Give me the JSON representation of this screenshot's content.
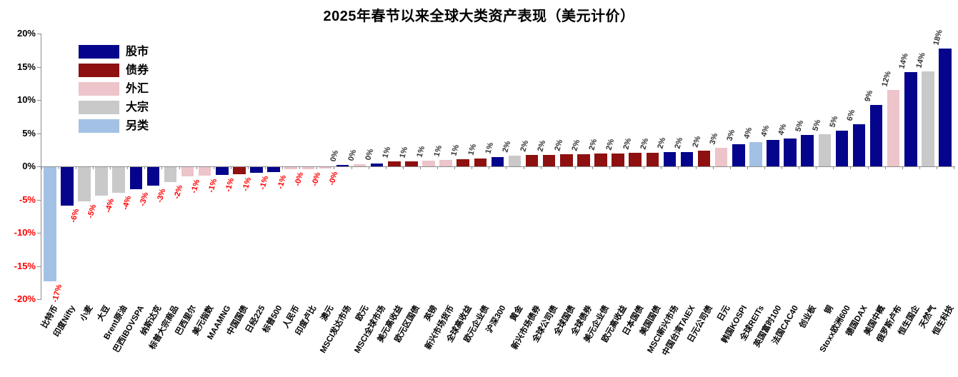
{
  "chart_data": {
    "type": "bar",
    "title": "2025年春节以来全球大类资产表现（美元计价）",
    "xlabel": "",
    "ylabel": "",
    "ylim": [
      -20,
      20
    ],
    "grid": false,
    "legend_position": "top-left",
    "positive_label_color": "#333333",
    "negative_label_color": "#FF0000",
    "axis_color": "#8c8c8c",
    "legend": [
      {
        "name": "股市",
        "color": "#04048C"
      },
      {
        "name": "债券",
        "color": "#8E1010"
      },
      {
        "name": "外汇",
        "color": "#ECC4C9"
      },
      {
        "name": "大宗",
        "color": "#C9C9C9"
      },
      {
        "name": "另类",
        "color": "#A3C1E5"
      }
    ],
    "y_ticks": [
      {
        "label": "20%",
        "v": 20,
        "color": "#000000"
      },
      {
        "label": "15%",
        "v": 15,
        "color": "#000000"
      },
      {
        "label": "10%",
        "v": 10,
        "color": "#000000"
      },
      {
        "label": "5%",
        "v": 5,
        "color": "#000000"
      },
      {
        "label": "0%",
        "v": 0,
        "color": "#000000"
      },
      {
        "label": "-5%",
        "v": -5,
        "color": "#FF0000"
      },
      {
        "label": "-10%",
        "v": -10,
        "color": "#FF0000"
      },
      {
        "label": "-15%",
        "v": -15,
        "color": "#FF0000"
      },
      {
        "label": "-20%",
        "v": -20,
        "color": "#FF0000"
      }
    ],
    "bars": [
      {
        "name": "比特币",
        "category": "另类",
        "label": "-17%",
        "value": -17.3
      },
      {
        "name": "印度Nifty",
        "category": "股市",
        "label": "-6%",
        "value": -5.9
      },
      {
        "name": "小麦",
        "category": "大宗",
        "label": "-5%",
        "value": -5.2
      },
      {
        "name": "大豆",
        "category": "大宗",
        "label": "-4%",
        "value": -4.4
      },
      {
        "name": "Brent原油",
        "category": "大宗",
        "label": "-4%",
        "value": -3.9
      },
      {
        "name": "巴西IBOVSPA",
        "category": "股市",
        "label": "-3%",
        "value": -3.4
      },
      {
        "name": "纳斯达克",
        "category": "股市",
        "label": "-3%",
        "value": -2.9
      },
      {
        "name": "标普大宗商品",
        "category": "大宗",
        "label": "-2%",
        "value": -2.3
      },
      {
        "name": "巴西里尔",
        "category": "外汇",
        "label": "-1%",
        "value": -1.4
      },
      {
        "name": "美元指数",
        "category": "外汇",
        "label": "-1%",
        "value": -1.3
      },
      {
        "name": "MAAMNG",
        "category": "股市",
        "label": "-1%",
        "value": -1.2
      },
      {
        "name": "中国国债",
        "category": "债券",
        "label": "-1%",
        "value": -1.1
      },
      {
        "name": "日经225",
        "category": "股市",
        "label": "-1%",
        "value": -0.9
      },
      {
        "name": "标普500",
        "category": "股市",
        "label": "-1%",
        "value": -0.8
      },
      {
        "name": "人民币",
        "category": "外汇",
        "label": "-0%",
        "value": -0.4
      },
      {
        "name": "印度卢比",
        "category": "外汇",
        "label": "-0%",
        "value": -0.35
      },
      {
        "name": "澳元",
        "category": "外汇",
        "label": "-0%",
        "value": -0.3
      },
      {
        "name": "MSCI发达市场",
        "category": "股市",
        "label": "0%",
        "value": 0.25
      },
      {
        "name": "欧元",
        "category": "外汇",
        "label": "0%",
        "value": 0.3
      },
      {
        "name": "MSCI全球市场",
        "category": "股市",
        "label": "0%",
        "value": 0.4
      },
      {
        "name": "美元高收益",
        "category": "债券",
        "label": "1%",
        "value": 0.7
      },
      {
        "name": "欧元区国债",
        "category": "债券",
        "label": "1%",
        "value": 0.8
      },
      {
        "name": "英镑",
        "category": "外汇",
        "label": "1%",
        "value": 0.9
      },
      {
        "name": "新兴市场货币",
        "category": "外汇",
        "label": "1%",
        "value": 1.0
      },
      {
        "name": "全球高收益",
        "category": "债券",
        "label": "1%",
        "value": 1.1
      },
      {
        "name": "欧元企业债",
        "category": "债券",
        "label": "1%",
        "value": 1.2
      },
      {
        "name": "沪深300",
        "category": "股市",
        "label": "1%",
        "value": 1.4
      },
      {
        "name": "黄金",
        "category": "大宗",
        "label": "2%",
        "value": 1.6
      },
      {
        "name": "新兴市场债券",
        "category": "债券",
        "label": "2%",
        "value": 1.7
      },
      {
        "name": "全球公司债",
        "category": "债券",
        "label": "2%",
        "value": 1.75
      },
      {
        "name": "全球国债",
        "category": "债券",
        "label": "2%",
        "value": 1.8
      },
      {
        "name": "全球债券",
        "category": "债券",
        "label": "2%",
        "value": 1.85
      },
      {
        "name": "美元企业债",
        "category": "债券",
        "label": "2%",
        "value": 1.9
      },
      {
        "name": "欧元高收益",
        "category": "债券",
        "label": "2%",
        "value": 1.95
      },
      {
        "name": "日本国债",
        "category": "债券",
        "label": "2%",
        "value": 2.0
      },
      {
        "name": "美国国债",
        "category": "债券",
        "label": "2%",
        "value": 2.05
      },
      {
        "name": "MSCI新兴市场",
        "category": "股市",
        "label": "2%",
        "value": 2.1
      },
      {
        "name": "中国台湾TAIEX",
        "category": "股市",
        "label": "2%",
        "value": 2.2
      },
      {
        "name": "日元公司债",
        "category": "债券",
        "label": "2%",
        "value": 2.4
      },
      {
        "name": "日元",
        "category": "外汇",
        "label": "3%",
        "value": 2.8
      },
      {
        "name": "韩国KOSPI",
        "category": "股市",
        "label": "3%",
        "value": 3.3
      },
      {
        "name": "全球REITs",
        "category": "另类",
        "label": "4%",
        "value": 3.7
      },
      {
        "name": "英国富时100",
        "category": "股市",
        "label": "4%",
        "value": 4.0
      },
      {
        "name": "法国CAC40",
        "category": "股市",
        "label": "4%",
        "value": 4.2
      },
      {
        "name": "创业板",
        "category": "股市",
        "label": "5%",
        "value": 4.7
      },
      {
        "name": "铜",
        "category": "大宗",
        "label": "5%",
        "value": 4.8
      },
      {
        "name": "Stoxx欧洲600",
        "category": "股市",
        "label": "5%",
        "value": 5.4
      },
      {
        "name": "德国DAX",
        "category": "股市",
        "label": "6%",
        "value": 6.3
      },
      {
        "name": "美国中概",
        "category": "股市",
        "label": "9%",
        "value": 9.3
      },
      {
        "name": "俄罗斯卢布",
        "category": "外汇",
        "label": "12%",
        "value": 11.5
      },
      {
        "name": "恒生国企",
        "category": "股市",
        "label": "14%",
        "value": 14.2
      },
      {
        "name": "天然气",
        "category": "大宗",
        "label": "14%",
        "value": 14.3
      },
      {
        "name": "恒生科技",
        "category": "股市",
        "label": "18%",
        "value": 17.7
      }
    ]
  }
}
